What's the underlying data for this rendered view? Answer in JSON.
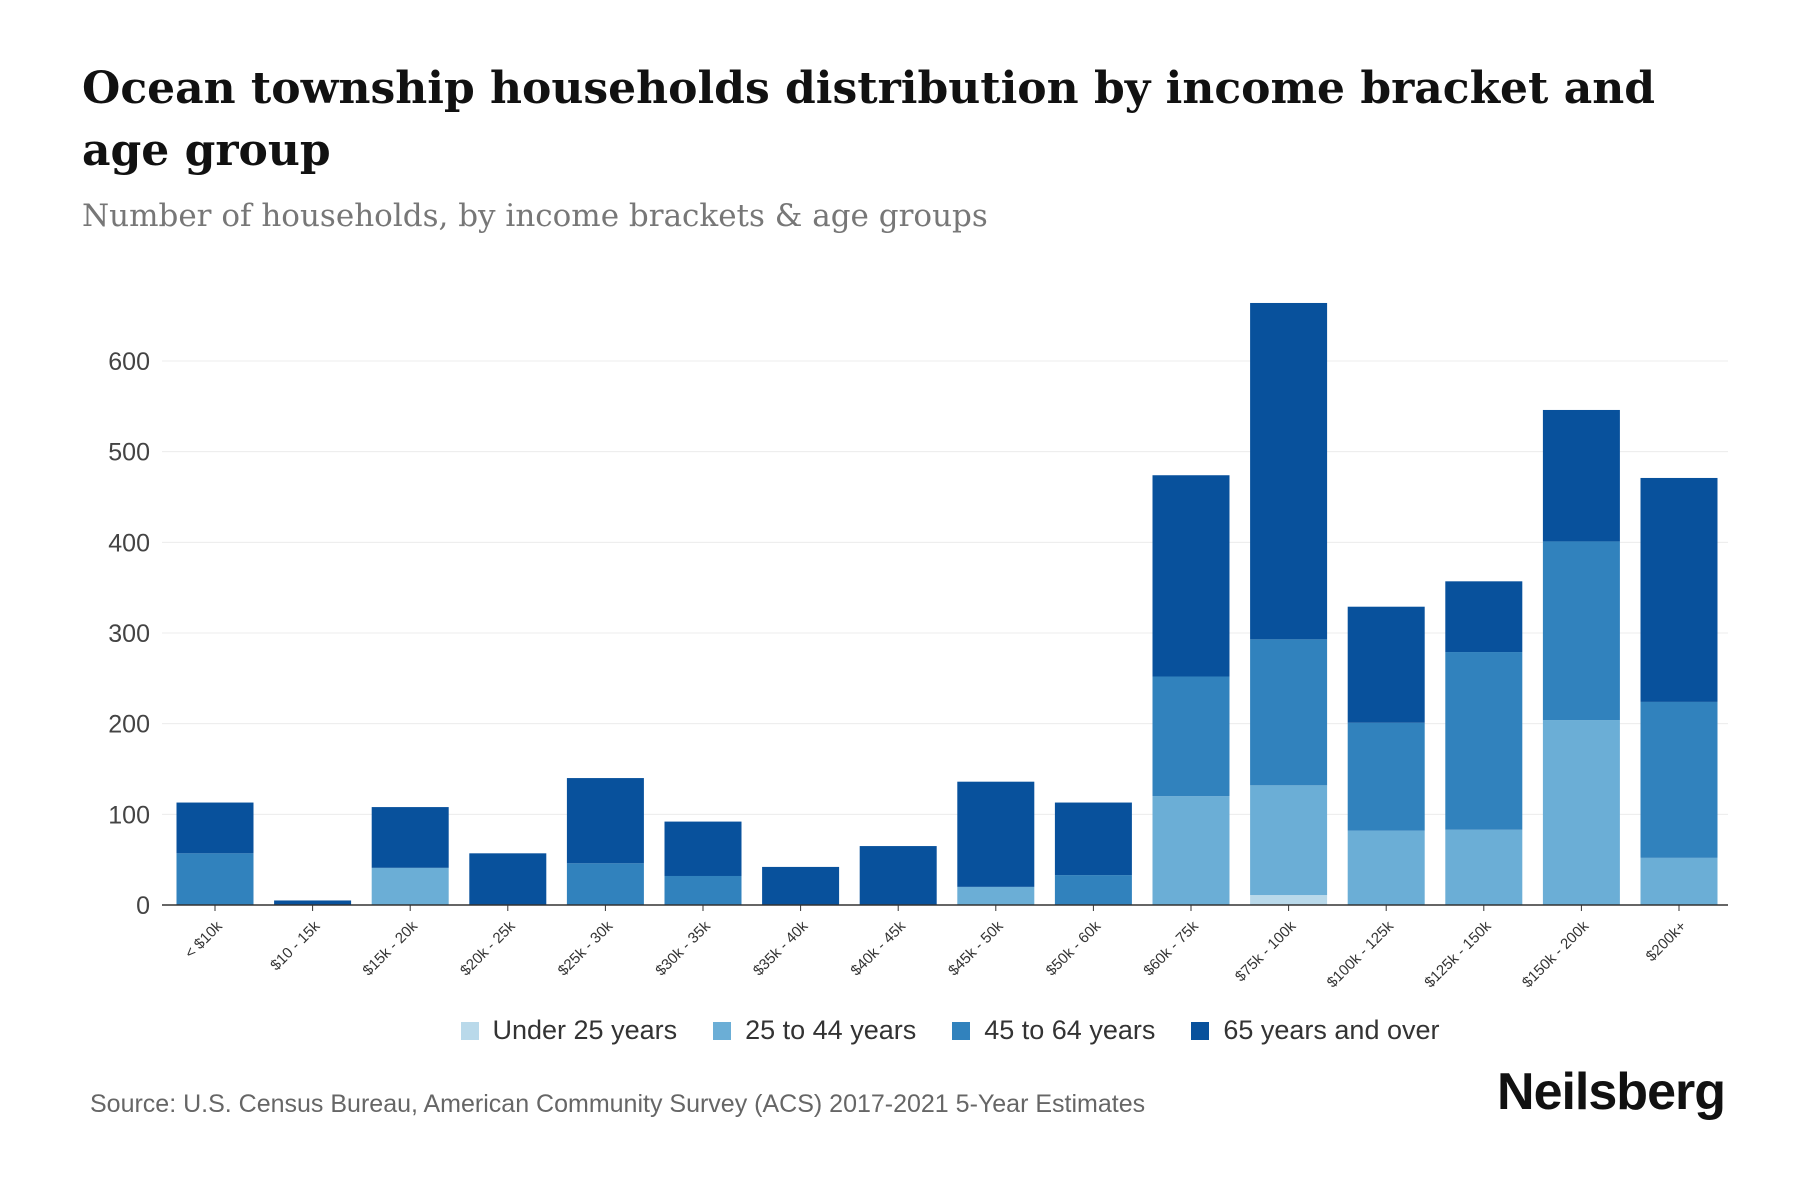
{
  "title": "Ocean township households distribution by income bracket and age group",
  "subtitle": "Number of households, by income brackets & age groups",
  "source": "Source: U.S. Census Bureau, American Community Survey (ACS) 2017-2021 5-Year Estimates",
  "logo": "Neilsberg",
  "chart_data": {
    "type": "bar",
    "stacked": true,
    "title": "Ocean township households distribution by income bracket and age group",
    "xlabel": "",
    "ylabel": "",
    "ylim": [
      0,
      680
    ],
    "yticks": [
      0,
      100,
      200,
      300,
      400,
      500,
      600
    ],
    "grid": true,
    "legend_position": "bottom",
    "categories": [
      "< $10k",
      "$10 - 15k",
      "$15k - 20k",
      "$20k - 25k",
      "$25k - 30k",
      "$30k - 35k",
      "$35k - 40k",
      "$40k - 45k",
      "$45k - 50k",
      "$50k - 60k",
      "$60k - 75k",
      "$75k - 100k",
      "$100k - 125k",
      "$125k - 150k",
      "$150k - 200k",
      "$200k+"
    ],
    "series": [
      {
        "name": "Under 25 years",
        "color": "#b9d9ea",
        "values": [
          0,
          0,
          0,
          0,
          0,
          0,
          0,
          0,
          0,
          0,
          0,
          11,
          0,
          0,
          0,
          0
        ]
      },
      {
        "name": "25 to 44 years",
        "color": "#6baed6",
        "values": [
          0,
          0,
          41,
          0,
          0,
          0,
          0,
          0,
          20,
          0,
          120,
          121,
          82,
          83,
          204,
          52
        ]
      },
      {
        "name": "45 to 64 years",
        "color": "#3182bd",
        "values": [
          57,
          0,
          0,
          0,
          46,
          32,
          0,
          0,
          0,
          33,
          132,
          161,
          119,
          196,
          197,
          172
        ]
      },
      {
        "name": "65 years and over",
        "color": "#08519c",
        "values": [
          56,
          5,
          67,
          57,
          94,
          60,
          42,
          65,
          116,
          80,
          222,
          371,
          128,
          78,
          145,
          247
        ]
      }
    ]
  }
}
